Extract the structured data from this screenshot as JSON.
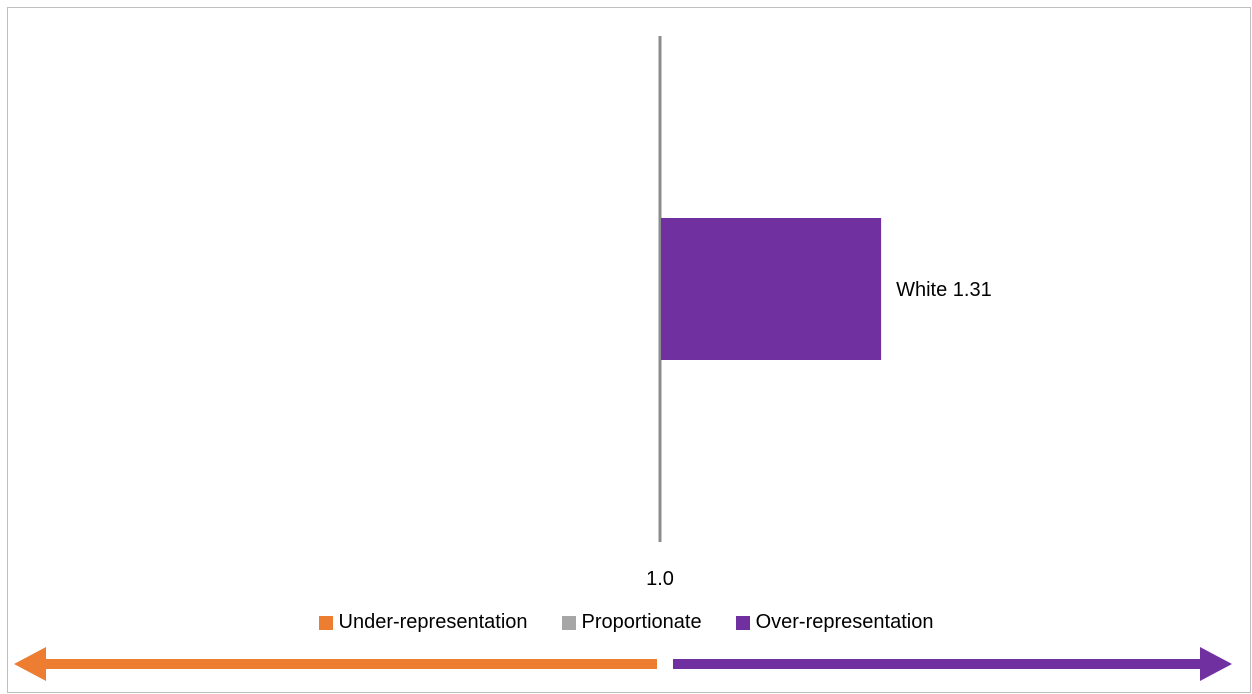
{
  "colors": {
    "under": "#ED7D31",
    "proportionate": "#A6A6A6",
    "over": "#7030A0",
    "reference_line": "#8C8C8C"
  },
  "chart_data": {
    "type": "bar",
    "orientation": "horizontal",
    "reference_value": 1.0,
    "reference_label": "1.0",
    "bars": [
      {
        "category": "White",
        "value": 1.31,
        "label": "White 1.31",
        "class": "over"
      }
    ],
    "legend": [
      {
        "key": "under",
        "label": "Under-representation"
      },
      {
        "key": "proportionate",
        "label": "Proportionate"
      },
      {
        "key": "over",
        "label": "Over-representation"
      }
    ],
    "legend_position": "bottom",
    "grid": false
  }
}
